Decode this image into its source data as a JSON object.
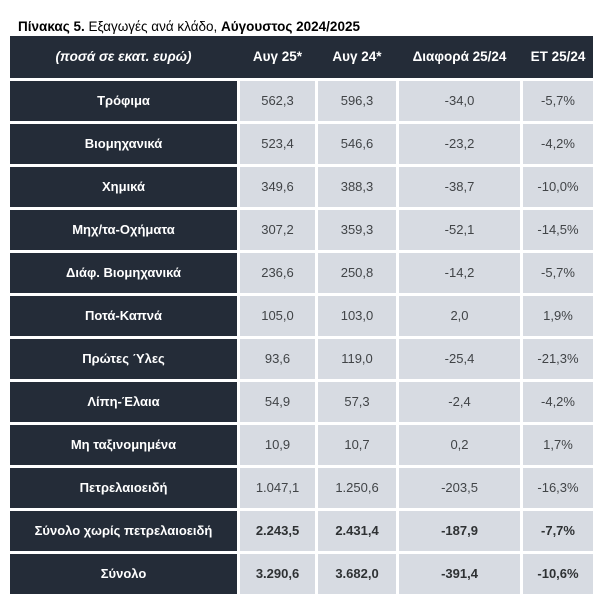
{
  "title": {
    "prefix": "Πίνακας 5.",
    "middle": " Εξαγωγές ανά κλάδο, ",
    "suffix": "Αύγουστος 2024/2025"
  },
  "table": {
    "header": [
      "(ποσά σε εκατ. ευρώ)",
      "Αυγ 25*",
      "Αυγ 24*",
      "Διαφορά 25/24",
      "ΕΤ 25/24"
    ],
    "rows": [
      {
        "label": "Τρόφιμα",
        "values": [
          "562,3",
          "596,3",
          "-34,0",
          "-5,7%"
        ],
        "bold": false
      },
      {
        "label": "Βιομηχανικά",
        "values": [
          "523,4",
          "546,6",
          "-23,2",
          "-4,2%"
        ],
        "bold": false
      },
      {
        "label": "Χημικά",
        "values": [
          "349,6",
          "388,3",
          "-38,7",
          "-10,0%"
        ],
        "bold": false
      },
      {
        "label": "Μηχ/τα-Οχήματα",
        "values": [
          "307,2",
          "359,3",
          "-52,1",
          "-14,5%"
        ],
        "bold": false
      },
      {
        "label": "Διάφ. Βιομηχανικά",
        "values": [
          "236,6",
          "250,8",
          "-14,2",
          "-5,7%"
        ],
        "bold": false
      },
      {
        "label": "Ποτά-Καπνά",
        "values": [
          "105,0",
          "103,0",
          "2,0",
          "1,9%"
        ],
        "bold": false
      },
      {
        "label": "Πρώτες Ύλες",
        "values": [
          "93,6",
          "119,0",
          "-25,4",
          "-21,3%"
        ],
        "bold": false
      },
      {
        "label": "Λίπη-Έλαια",
        "values": [
          "54,9",
          "57,3",
          "-2,4",
          "-4,2%"
        ],
        "bold": false
      },
      {
        "label": "Μη ταξινομημένα",
        "values": [
          "10,9",
          "10,7",
          "0,2",
          "1,7%"
        ],
        "bold": false
      },
      {
        "label": "Πετρελαιοειδή",
        "values": [
          "1.047,1",
          "1.250,6",
          "-203,5",
          "-16,3%"
        ],
        "bold": false
      },
      {
        "label": "Σύνολο χωρίς πετρελαιοειδή",
        "values": [
          "2.243,5",
          "2.431,4",
          "-187,9",
          "-7,7%"
        ],
        "bold": true
      },
      {
        "label": "Σύνολο",
        "values": [
          "3.290,6",
          "3.682,0",
          "-391,4",
          "-10,6%"
        ],
        "bold": true
      }
    ]
  },
  "colors": {
    "dark_cell": "#242c38",
    "light_cell": "#d7dbe2",
    "header_text": "#ffffff",
    "value_text": "#414447",
    "grid_line": "#ffffff"
  }
}
